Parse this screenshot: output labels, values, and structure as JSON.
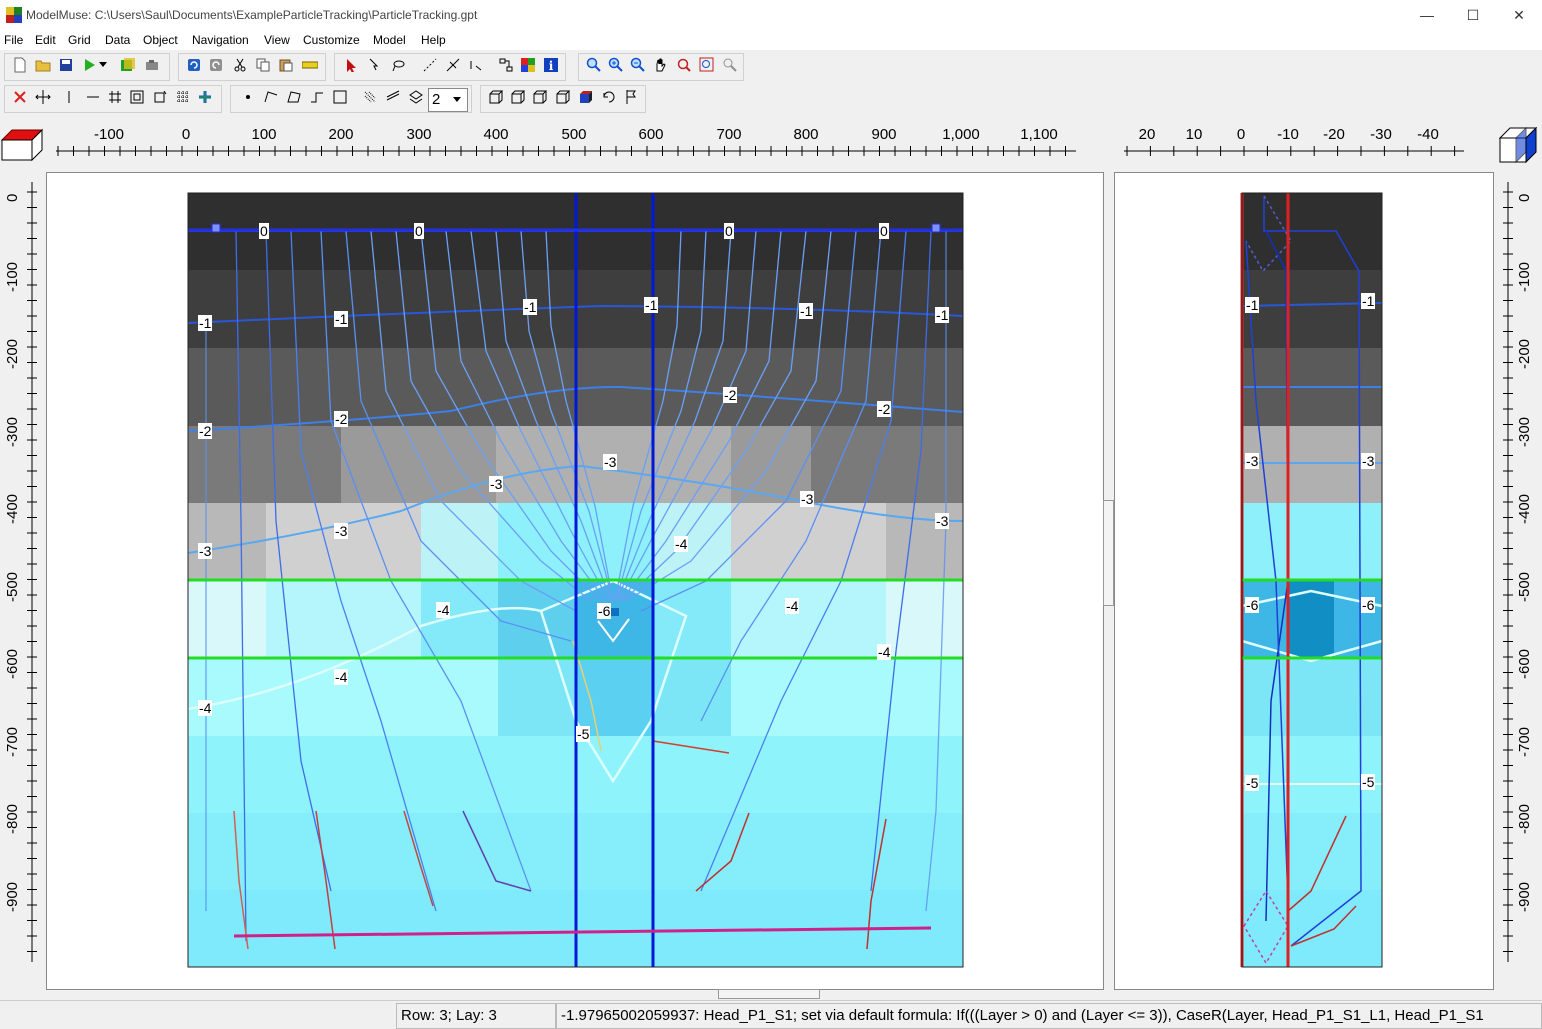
{
  "window": {
    "title": "ModelMuse: C:\\Users\\Saul\\Documents\\ExampleParticleTracking\\ParticleTracking.gpt",
    "minimize_glyph": "—",
    "maximize_glyph": "☐",
    "close_glyph": "✕"
  },
  "menu": {
    "items": [
      "File",
      "Edit",
      "Grid",
      "Data",
      "Object",
      "Navigation",
      "View",
      "Customize",
      "Model",
      "Help"
    ]
  },
  "toolbar": {
    "layer_spin_value": "2"
  },
  "top_ruler": {
    "labels": [
      "-100",
      "0",
      "100",
      "200",
      "300",
      "400",
      "500",
      "600",
      "700",
      "800",
      "900",
      "1,000",
      "1,100"
    ]
  },
  "side_ruler": {
    "labels": [
      "20",
      "10",
      "0",
      "-10",
      "-20",
      "-30",
      "-40"
    ]
  },
  "left_ruler": {
    "labels": [
      "0",
      "-100",
      "-200",
      "-300",
      "-400",
      "-500",
      "-600",
      "-700",
      "-800",
      "-900"
    ]
  },
  "right_ruler": {
    "labels": [
      "0",
      "-100",
      "-200",
      "-300",
      "-400",
      "-500",
      "-600",
      "-700",
      "-800",
      "-900"
    ]
  },
  "front_view": {
    "contour_labels": [
      "0",
      "0",
      "0",
      "0",
      "-1",
      "-1",
      "-1",
      "-1",
      "-1",
      "-1",
      "-2",
      "-2",
      "-2",
      "-2",
      "-3",
      "-3",
      "-3",
      "-3",
      "-3",
      "-3",
      "-4",
      "-4",
      "-4",
      "-4",
      "-4",
      "-4",
      "-6",
      "-5"
    ]
  },
  "side_view": {
    "contour_labels": [
      "-1",
      "-1",
      "-3",
      "-3",
      "-6",
      "-6",
      "-5",
      "-5"
    ]
  },
  "colors": {
    "cell_gray_dark": "#303030",
    "cell_cyan": "#7fefff",
    "grid_blue": "#0018d8",
    "contour_blue": "#3060e8",
    "green_line": "#22dd22",
    "magenta": "#d0208a",
    "red": "#e02020"
  },
  "status": {
    "row_layer": "Row: 3; Lay: 3",
    "value_text": "-1.97965002059937: Head_P1_S1; set via default formula: If(((Layer > 0) and (Layer <= 3)), CaseR(Layer, Head_P1_S1_L1, Head_P1_S1"
  }
}
